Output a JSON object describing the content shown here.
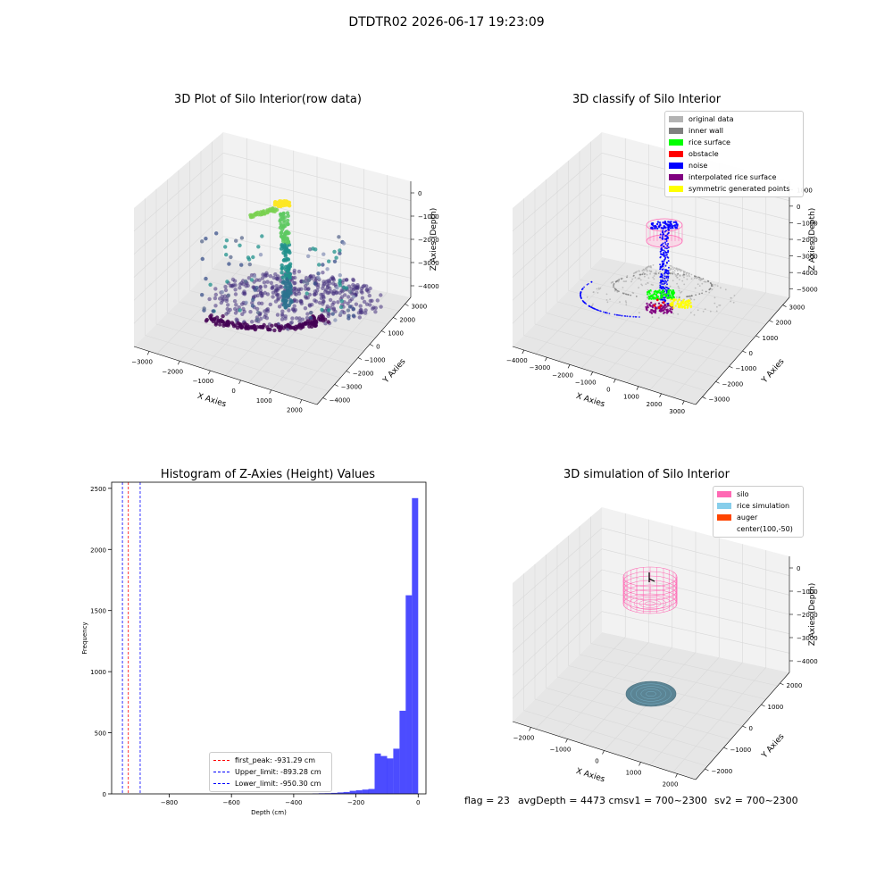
{
  "figure": {
    "suptitle": "DTDTR02 2026-06-17 19:23:09",
    "footer_flag": "flag = 23",
    "footer_avg": "avgDepth = 4473 cmsv1 = 700~2300",
    "footer_sv2": "sv2 = 700~2300"
  },
  "chart_data": [
    {
      "type": "scatter",
      "projection": "3d",
      "title": "3D Plot of Silo Interior(row data)",
      "xlabel": "X Axies",
      "ylabel": "Y Axies",
      "zlabel": "Z Axies (Depth)",
      "x_ticks": [
        "−3000",
        "−2000",
        "−1000",
        "0",
        "1000",
        "2000"
      ],
      "y_ticks": [
        "−4000",
        "−3000",
        "−2000",
        "−1000",
        "0",
        "1000",
        "2000",
        "3000"
      ],
      "z_ticks": [
        "−4000",
        "−3000",
        "−2000",
        "−1000",
        "0"
      ],
      "colormap": "viridis",
      "grid": true
    },
    {
      "type": "scatter",
      "projection": "3d",
      "title": "3D classify of Silo Interior",
      "xlabel": "X Axies",
      "ylabel": "Y Axies",
      "zlabel": "Z Axies (Depth)",
      "x_ticks": [
        "−4000",
        "−3000",
        "−2000",
        "−1000",
        "0",
        "1000",
        "2000",
        "3000"
      ],
      "y_ticks": [
        "−3000",
        "−2000",
        "−1000",
        "0",
        "1000",
        "2000",
        "3000"
      ],
      "z_ticks": [
        "−5000",
        "−4000",
        "−3000",
        "−2000",
        "−1000",
        "0",
        "1000"
      ],
      "legend_position": "top-right",
      "grid": true,
      "legend": [
        {
          "label": "original data",
          "color": "#b3b3b3"
        },
        {
          "label": "inner wall",
          "color": "#808080"
        },
        {
          "label": "rice surface",
          "color": "#00ff00"
        },
        {
          "label": "obstacle",
          "color": "#ff0000"
        },
        {
          "label": "noise",
          "color": "#0000ff"
        },
        {
          "label": "interpolated rice surface",
          "color": "#800080"
        },
        {
          "label": "symmetric generated points",
          "color": "#ffff00"
        }
      ]
    },
    {
      "type": "bar",
      "subtype": "histogram",
      "title": "Histogram of Z-Axies (Height) Values",
      "xlabel": "Depth (cm)",
      "ylabel": "Frequency",
      "xlim": [
        -985,
        25
      ],
      "ylim": [
        0,
        2550
      ],
      "x_ticks": [
        -800,
        -600,
        -400,
        -200,
        0
      ],
      "x_tick_labels": [
        "−800",
        "−600",
        "−400",
        "−200",
        "0"
      ],
      "y_ticks": [
        0,
        500,
        1000,
        1500,
        2000,
        2500
      ],
      "bar_color": "#0000ff",
      "bin_width": 20,
      "bins": [
        {
          "x0": -340,
          "count": 4
        },
        {
          "x0": -320,
          "count": 5
        },
        {
          "x0": -300,
          "count": 6
        },
        {
          "x0": -280,
          "count": 8
        },
        {
          "x0": -260,
          "count": 12
        },
        {
          "x0": -240,
          "count": 15
        },
        {
          "x0": -220,
          "count": 25
        },
        {
          "x0": -200,
          "count": 30
        },
        {
          "x0": -180,
          "count": 35
        },
        {
          "x0": -160,
          "count": 40
        },
        {
          "x0": -140,
          "count": 330
        },
        {
          "x0": -120,
          "count": 310
        },
        {
          "x0": -100,
          "count": 290
        },
        {
          "x0": -80,
          "count": 370
        },
        {
          "x0": -60,
          "count": 680
        },
        {
          "x0": -40,
          "count": 1625
        },
        {
          "x0": -20,
          "count": 2420
        }
      ],
      "vlines": [
        {
          "label": "first_peak: -931.29 cm",
          "x": -931.29,
          "color": "#ff0000"
        },
        {
          "label": "Upper_limit: -893.28 cm",
          "x": -893.28,
          "color": "#0000ff"
        },
        {
          "label": "Lower_limit: -950.30 cm",
          "x": -950.3,
          "color": "#0000ff"
        }
      ],
      "legend_position": "lower-right"
    },
    {
      "type": "scatter",
      "projection": "3d",
      "title": "3D simulation of Silo Interior",
      "xlabel": "X Axies",
      "ylabel": "Y Axies",
      "zlabel": "Z Axies (Depth)",
      "x_ticks": [
        "−2000",
        "−1000",
        "0",
        "1000",
        "2000"
      ],
      "y_ticks": [
        "−2000",
        "−1000",
        "0",
        "1000",
        "2000"
      ],
      "z_ticks": [
        "−4000",
        "−3000",
        "−2000",
        "−1000",
        "0"
      ],
      "legend_position": "top-right",
      "grid": true,
      "legend": [
        {
          "label": "silo",
          "color": "#ff69b4"
        },
        {
          "label": "rice simulation",
          "color": "#87ceeb"
        },
        {
          "label": "auger",
          "color": "#ff4500"
        },
        {
          "label": "center(100,-50)",
          "color": "#ffffff"
        }
      ]
    }
  ]
}
